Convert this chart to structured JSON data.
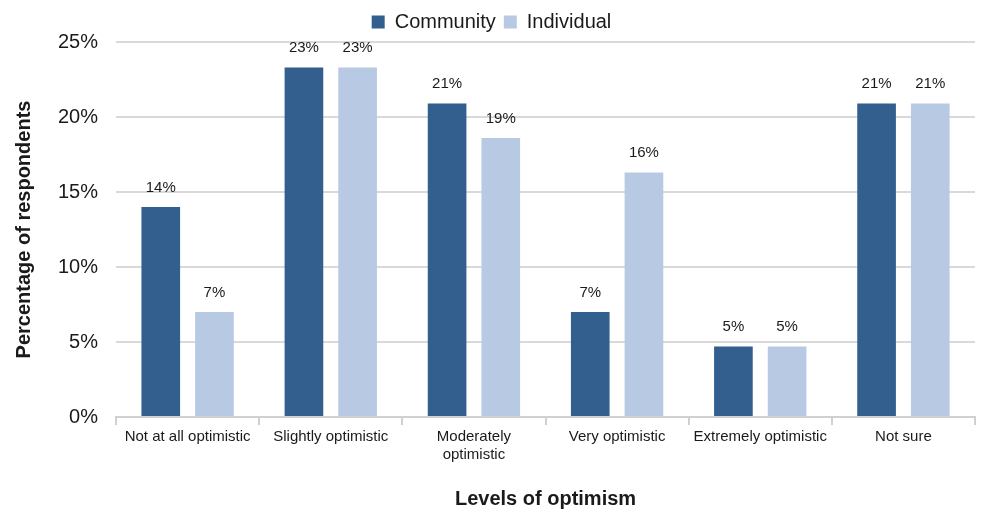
{
  "chart_data": {
    "type": "bar",
    "xlabel": "Levels of optimism",
    "ylabel": "Percentage of respondents",
    "categories": [
      "Not at all optimistic",
      "Slightly optimistic",
      "Moderately optimistic",
      "Very optimistic",
      "Extremely optimistic",
      "Not sure"
    ],
    "series": [
      {
        "name": "Community",
        "color": "#335f8f",
        "values": [
          14,
          23.3,
          20.9,
          7,
          4.7,
          20.9
        ],
        "value_labels": [
          "14%",
          "23%",
          "21%",
          "7%",
          "5%",
          "21%"
        ]
      },
      {
        "name": "Individual",
        "color": "#b7c9e3",
        "values": [
          7,
          23.3,
          18.6,
          16.3,
          4.7,
          20.9
        ],
        "value_labels": [
          "7%",
          "23%",
          "19%",
          "16%",
          "5%",
          "21%"
        ]
      }
    ],
    "ylim": [
      0,
      25
    ],
    "yticks": [
      {
        "value": 0,
        "label": "0%"
      },
      {
        "value": 5,
        "label": "5%"
      },
      {
        "value": 10,
        "label": "10%"
      },
      {
        "value": 15,
        "label": "15%"
      },
      {
        "value": 20,
        "label": "20%"
      },
      {
        "value": 25,
        "label": "25%"
      }
    ],
    "grid": "y",
    "legend": "top"
  }
}
